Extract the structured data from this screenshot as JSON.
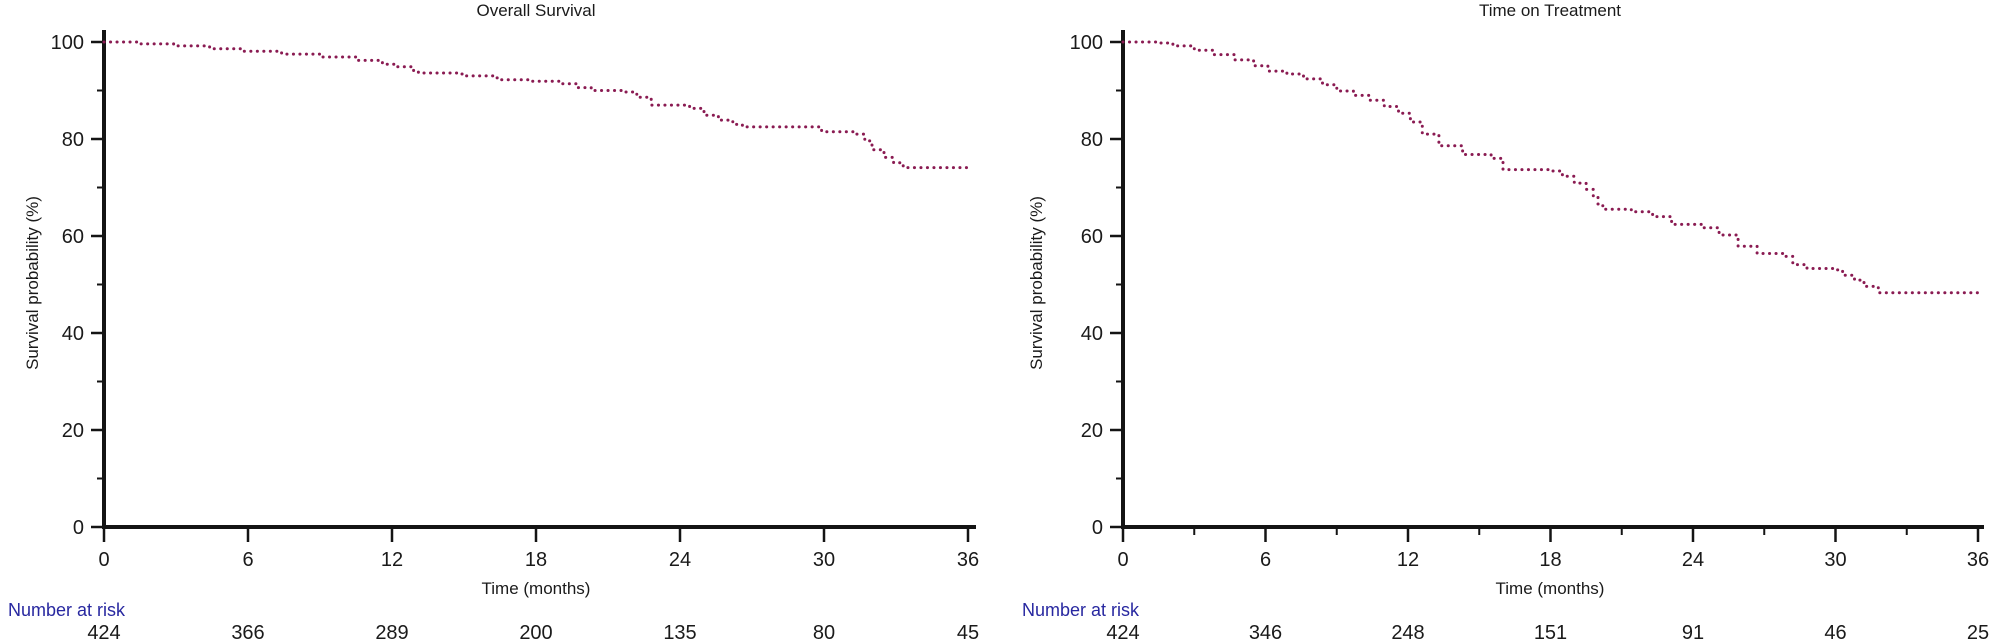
{
  "colors": {
    "curve": "#8a1b52",
    "axis": "#141414",
    "tick_text": "#1a1a1a",
    "risk_label_blue": "#2828a0",
    "background": "#ffffff"
  },
  "chart_data": [
    {
      "type": "line",
      "title": "Overall Survival",
      "xlabel": "Time (months)",
      "ylabel": "Survival probability (%)",
      "line_style": "dotted-step",
      "xlim": [
        0,
        36
      ],
      "ylim": [
        0,
        100
      ],
      "x_ticks": [
        0,
        6,
        12,
        18,
        24,
        30,
        36
      ],
      "x_minor_ticks": [],
      "y_ticks": [
        0,
        20,
        40,
        60,
        80,
        100
      ],
      "y_minor_ticks": [
        10,
        30,
        50,
        70,
        90
      ],
      "grid": false,
      "series": [
        {
          "name": "Overall Survival",
          "points": [
            [
              0,
              100
            ],
            [
              1.5,
              99.6
            ],
            [
              2.9,
              99.2
            ],
            [
              4.4,
              98.6
            ],
            [
              5.8,
              98.1
            ],
            [
              7.4,
              97.5
            ],
            [
              9.0,
              96.9
            ],
            [
              10.5,
              96.2
            ],
            [
              11.6,
              95.4
            ],
            [
              12.1,
              94.9
            ],
            [
              12.9,
              93.9
            ],
            [
              13.1,
              93.6
            ],
            [
              14.8,
              93.4
            ],
            [
              15.1,
              93.0
            ],
            [
              16.2,
              92.6
            ],
            [
              16.5,
              92.2
            ],
            [
              17.8,
              91.9
            ],
            [
              19.1,
              91.4
            ],
            [
              19.7,
              90.6
            ],
            [
              20.3,
              90.0
            ],
            [
              21.6,
              89.7
            ],
            [
              22.2,
              88.6
            ],
            [
              22.8,
              87.0
            ],
            [
              24.4,
              86.3
            ],
            [
              25.0,
              84.9
            ],
            [
              25.6,
              83.9
            ],
            [
              26.2,
              83.0
            ],
            [
              26.6,
              82.5
            ],
            [
              29.9,
              81.5
            ],
            [
              31.3,
              81.0
            ],
            [
              31.7,
              79.6
            ],
            [
              32.0,
              77.8
            ],
            [
              32.5,
              76.2
            ],
            [
              32.9,
              75.1
            ],
            [
              33.3,
              74.1
            ],
            [
              36.0,
              74.1
            ]
          ]
        }
      ],
      "number_at_risk": {
        "label": "Number at risk",
        "times": [
          0,
          6,
          12,
          18,
          24,
          30,
          36
        ],
        "values": [
          "424",
          "366",
          "289",
          "200",
          "135",
          "80",
          "45"
        ]
      }
    },
    {
      "type": "line",
      "title": "Time on Treatment",
      "xlabel": "Time (months)",
      "ylabel": "Survival probability (%)",
      "line_style": "dotted-step",
      "xlim": [
        0,
        36
      ],
      "ylim": [
        0,
        100
      ],
      "x_ticks": [
        0,
        6,
        12,
        18,
        24,
        30,
        36
      ],
      "x_minor_ticks": [
        3,
        9,
        15,
        21,
        27,
        33
      ],
      "y_ticks": [
        0,
        20,
        40,
        60,
        80,
        100
      ],
      "y_minor_ticks": [
        10,
        30,
        50,
        70,
        90
      ],
      "grid": false,
      "series": [
        {
          "name": "Time on Treatment",
          "points": [
            [
              0,
              100
            ],
            [
              1.4,
              99.8
            ],
            [
              2.1,
              99.2
            ],
            [
              3.0,
              98.3
            ],
            [
              3.8,
              97.4
            ],
            [
              4.7,
              96.3
            ],
            [
              5.5,
              95.1
            ],
            [
              6.1,
              94.0
            ],
            [
              6.9,
              93.4
            ],
            [
              7.6,
              92.4
            ],
            [
              8.4,
              91.2
            ],
            [
              9.0,
              89.9
            ],
            [
              9.7,
              89.0
            ],
            [
              10.4,
              88.0
            ],
            [
              11.0,
              86.7
            ],
            [
              11.6,
              85.3
            ],
            [
              12.1,
              83.5
            ],
            [
              12.6,
              81.0
            ],
            [
              13.3,
              78.6
            ],
            [
              14.3,
              76.8
            ],
            [
              15.5,
              76.0
            ],
            [
              16.0,
              73.7
            ],
            [
              18.1,
              73.4
            ],
            [
              18.5,
              72.3
            ],
            [
              19.0,
              70.9
            ],
            [
              19.5,
              69.6
            ],
            [
              19.8,
              68.0
            ],
            [
              20.0,
              66.6
            ],
            [
              20.2,
              65.5
            ],
            [
              21.4,
              65.0
            ],
            [
              22.3,
              64.0
            ],
            [
              23.1,
              62.4
            ],
            [
              24.4,
              61.7
            ],
            [
              25.1,
              60.2
            ],
            [
              25.9,
              57.9
            ],
            [
              26.7,
              56.4
            ],
            [
              27.9,
              55.8
            ],
            [
              28.2,
              54.1
            ],
            [
              28.8,
              53.3
            ],
            [
              29.9,
              53.0
            ],
            [
              30.3,
              51.9
            ],
            [
              30.8,
              50.9
            ],
            [
              31.2,
              49.6
            ],
            [
              31.8,
              48.3
            ],
            [
              36.0,
              48.3
            ]
          ]
        }
      ],
      "number_at_risk": {
        "label": "Number at risk",
        "times": [
          0,
          6,
          12,
          18,
          24,
          30,
          36
        ],
        "values": [
          "424",
          "346",
          "248",
          "151",
          "91",
          "46",
          "25"
        ]
      }
    }
  ]
}
